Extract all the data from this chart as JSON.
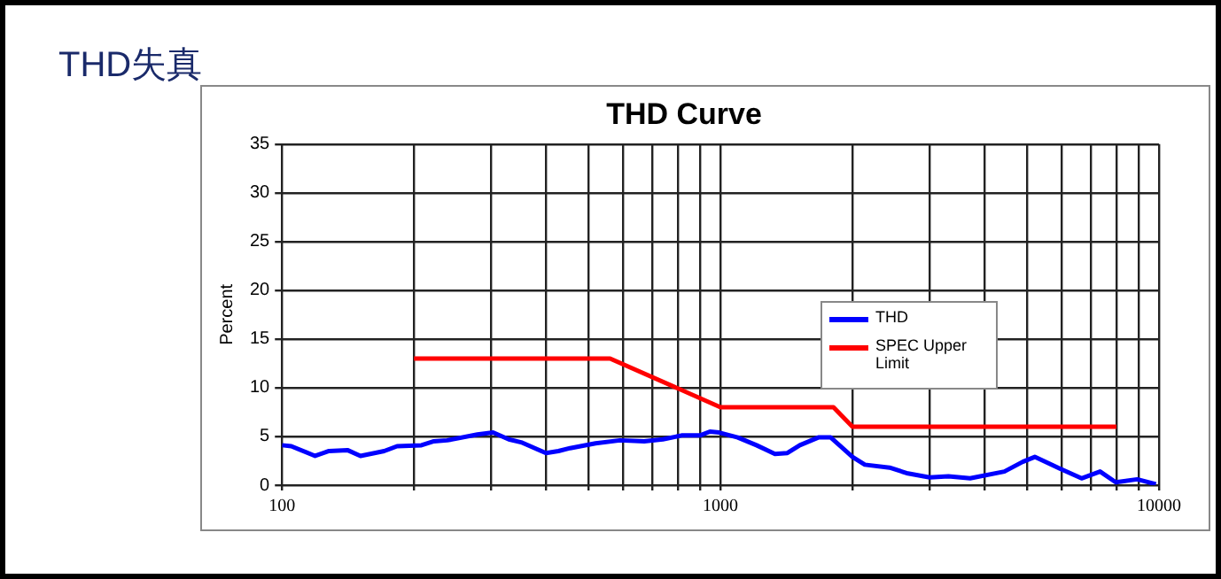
{
  "chart_data": {
    "type": "line",
    "title": "THD失真",
    "subtitle": "THD Curve",
    "ylabel": "Percent",
    "xlim": [
      100,
      10000
    ],
    "ylim": [
      0,
      35
    ],
    "log": "x",
    "grid": true,
    "legend": "right",
    "marker": "none",
    "line_style": "solid",
    "xticks": [
      100,
      {
        "value": 200,
        "label": null
      },
      {
        "value": 300,
        "label": null
      },
      {
        "value": 400,
        "label": null
      },
      {
        "value": 500,
        "label": null
      },
      {
        "value": 600,
        "label": null
      },
      {
        "value": 700,
        "label": null
      },
      {
        "value": 800,
        "label": null
      },
      {
        "value": 900,
        "label": null
      },
      1000,
      {
        "value": 2000,
        "label": null
      },
      {
        "value": 3000,
        "label": null
      },
      {
        "value": 4000,
        "label": null
      },
      {
        "value": 5000,
        "label": null
      },
      {
        "value": 6000,
        "label": null
      },
      {
        "value": 7000,
        "label": null
      },
      {
        "value": 8000,
        "label": null
      },
      {
        "value": 9000,
        "label": null
      },
      10000
    ],
    "yticks": [
      0,
      5,
      10,
      15,
      20,
      25,
      30,
      35
    ],
    "series": [
      {
        "name": "THD",
        "color": "#0000ff",
        "x": [
          100,
          105,
          119,
          128,
          141,
          151,
          171,
          183,
          208,
          222,
          238,
          279,
          303,
          329,
          351,
          400,
          427,
          454,
          519,
          590,
          670,
          739,
          815,
          898,
          946,
          993,
          1095,
          1208,
          1331,
          1421,
          1517,
          1672,
          1784,
          2000,
          2134,
          2430,
          2677,
          3000,
          3310,
          3710,
          4440,
          4890,
          5210,
          5940,
          6660,
          7340,
          7970,
          8920,
          9840
        ],
        "values": [
          4.1,
          4.0,
          3.0,
          3.5,
          3.6,
          3.0,
          3.5,
          4.0,
          4.1,
          4.5,
          4.6,
          5.2,
          5.4,
          4.7,
          4.4,
          3.3,
          3.5,
          3.8,
          4.3,
          4.6,
          4.5,
          4.7,
          5.1,
          5.1,
          5.5,
          5.4,
          4.9,
          4.1,
          3.2,
          3.3,
          4.1,
          4.9,
          4.9,
          2.9,
          2.1,
          1.8,
          1.2,
          0.8,
          0.9,
          0.7,
          1.4,
          2.4,
          2.9,
          1.7,
          0.7,
          1.4,
          0.3,
          0.6,
          0.1
        ]
      },
      {
        "name": "SPEC Upper Limit",
        "color": "#ff0000",
        "x": [
          200,
          560,
          1000,
          1810,
          2000,
          8000
        ],
        "values": [
          13,
          13,
          8,
          8,
          6,
          6
        ]
      }
    ]
  }
}
